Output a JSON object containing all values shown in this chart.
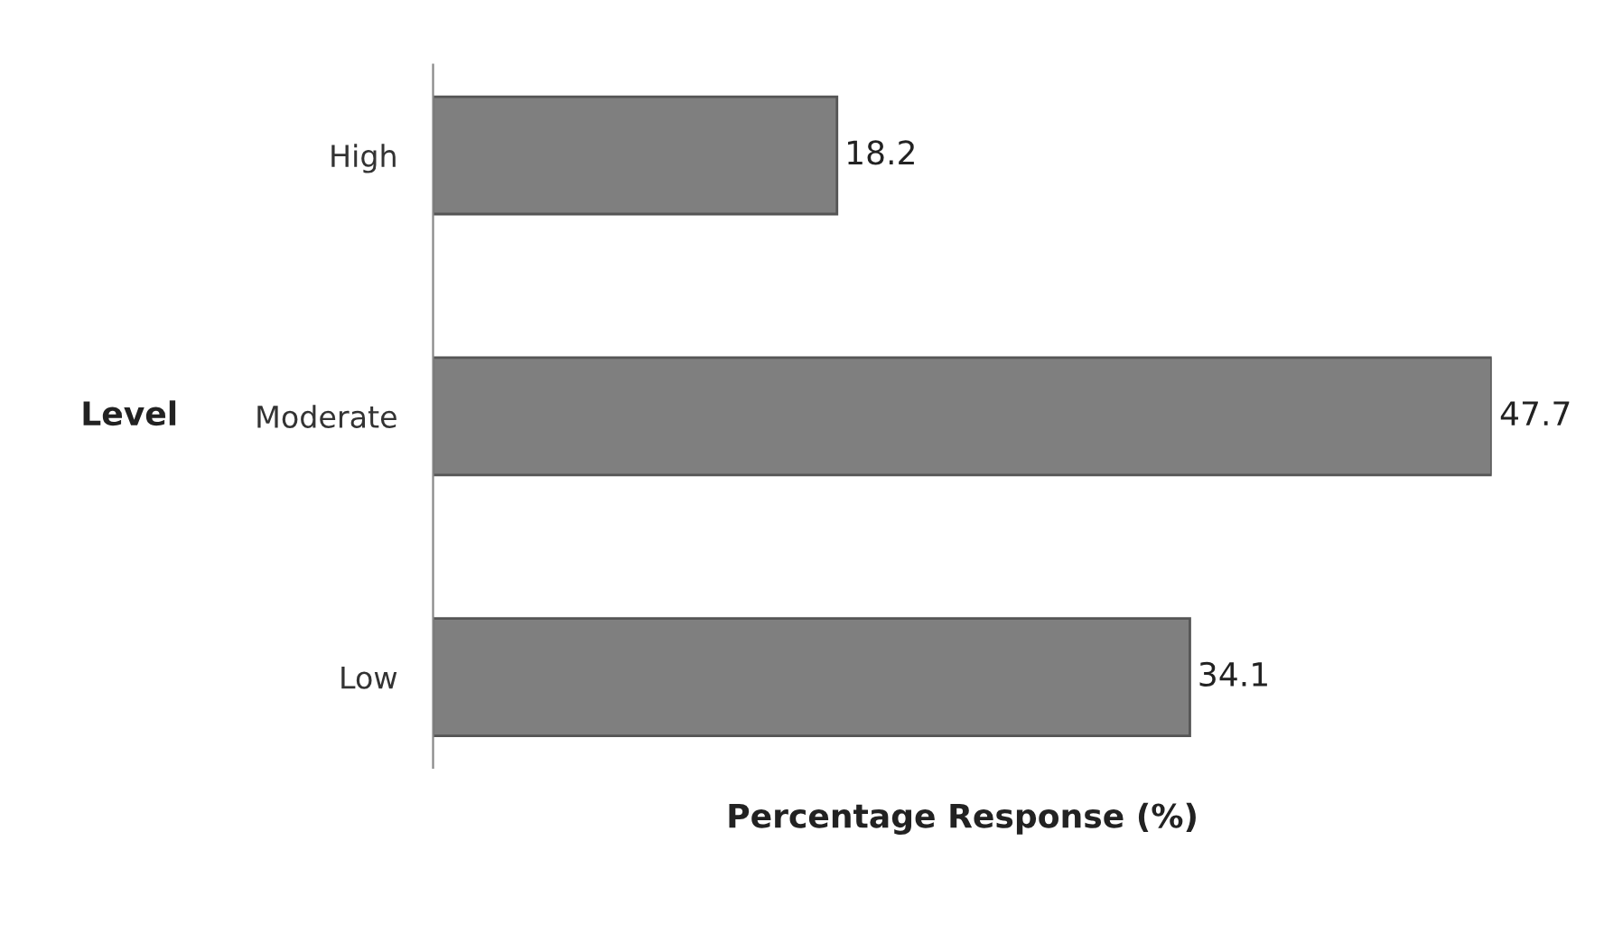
{
  "chart_data": {
    "type": "bar",
    "orientation": "horizontal",
    "xlabel": "Percentage Response (%)",
    "ylabel": "Level",
    "categories": [
      "High",
      "Moderate",
      "Low"
    ],
    "values": [
      18.2,
      47.7,
      34.1
    ],
    "color": "#7f7f7f",
    "data_labels": true,
    "grid": false,
    "legend": false
  }
}
